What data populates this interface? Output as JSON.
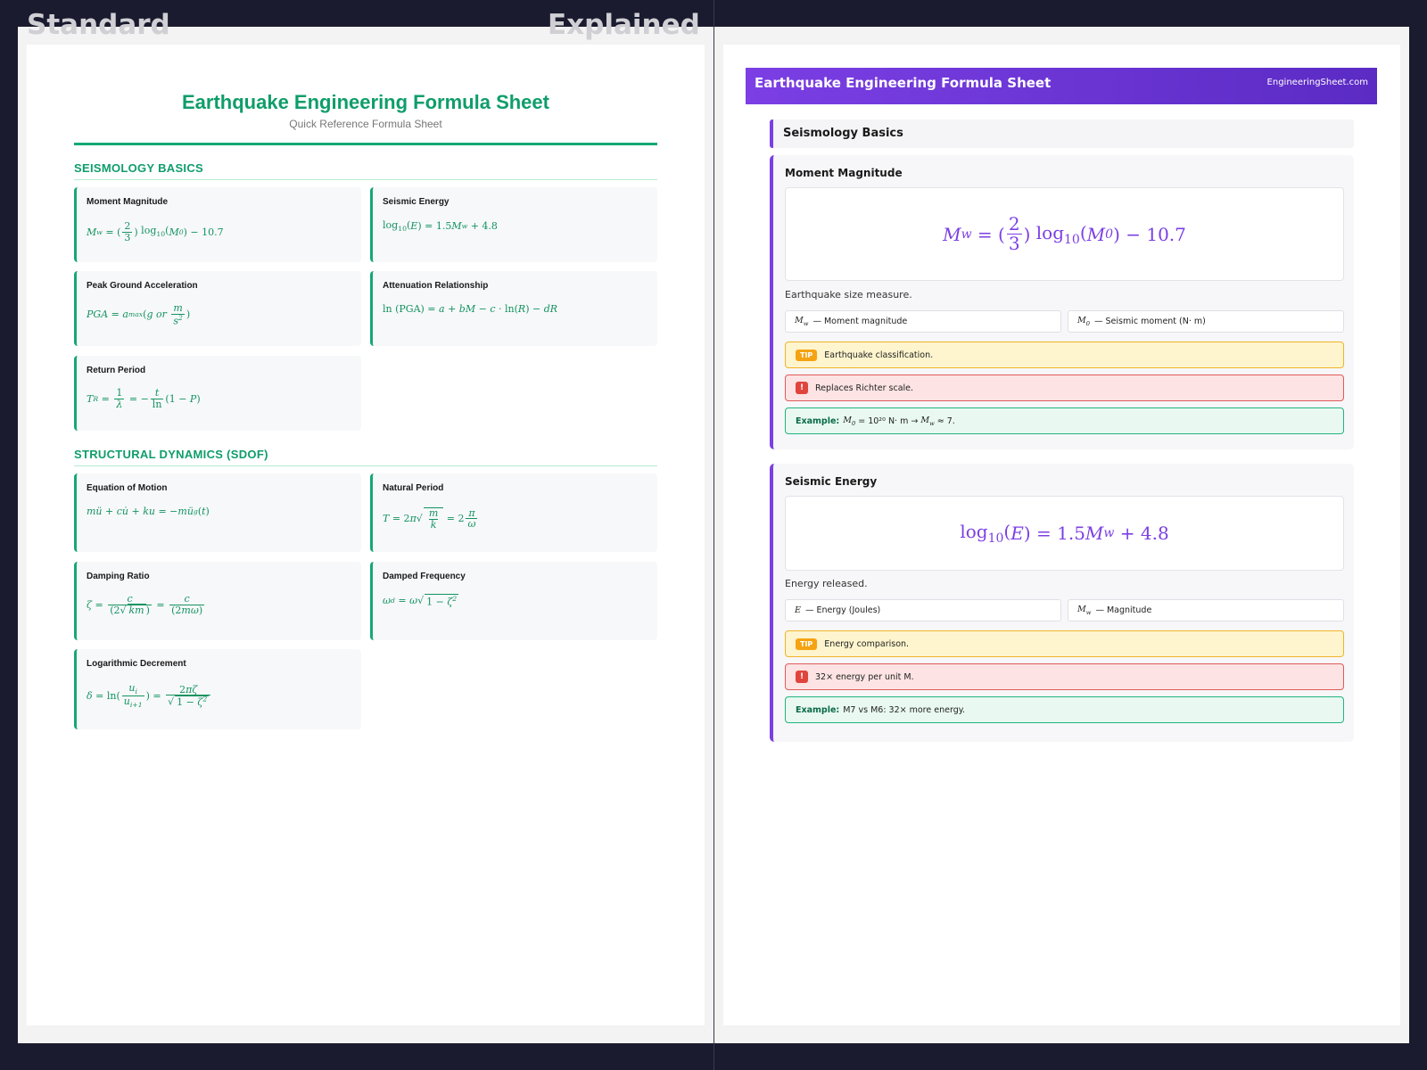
{
  "labels": {
    "standard": "Standard",
    "explained": "Explained"
  },
  "left": {
    "title": "Earthquake Engineering Formula Sheet",
    "subtitle": "Quick Reference Formula Sheet",
    "sections": [
      {
        "title": "SEISMOLOGY BASICS",
        "cards": [
          {
            "title": "Moment Magnitude"
          },
          {
            "title": "Seismic Energy"
          },
          {
            "title": "Peak Ground Acceleration"
          },
          {
            "title": "Attenuation Relationship"
          },
          {
            "title": "Return Period"
          }
        ]
      },
      {
        "title": "STRUCTURAL DYNAMICS (SDOF)",
        "cards": [
          {
            "title": "Equation of Motion"
          },
          {
            "title": "Natural Period"
          },
          {
            "title": "Damping Ratio"
          },
          {
            "title": "Damped Frequency"
          },
          {
            "title": "Logarithmic Decrement"
          }
        ]
      }
    ]
  },
  "right": {
    "header_title": "Earthquake Engineering Formula Sheet",
    "header_site": "EngineeringSheet.com",
    "section_title": "Seismology Basics",
    "cards": [
      {
        "title": "Moment Magnitude",
        "description": "Earthquake size measure.",
        "variables": [
          {
            "desc": "— Moment magnitude"
          },
          {
            "desc": "— Seismic moment (N· m)"
          }
        ],
        "tip_tag": "TIP",
        "tip": "Earthquake classification.",
        "warn_tag": "!",
        "warning": "Replaces Richter scale.",
        "example_label": "Example:",
        "example": "= 10²⁰ N· m"
      },
      {
        "title": "Seismic Energy",
        "description": "Energy released.",
        "variables": [
          {
            "desc": "— Energy (Joules)"
          },
          {
            "desc": "— Magnitude"
          }
        ],
        "tip_tag": "TIP",
        "tip": "Energy comparison.",
        "warn_tag": "!",
        "warning": "32× energy per unit M.",
        "example_label": "Example:",
        "example": "M7 vs M6: 32× more energy."
      }
    ]
  },
  "colors": {
    "left_accent": "#0f9d6b",
    "right_accent": "#7b3fe4",
    "background": "#1b1b2f"
  }
}
